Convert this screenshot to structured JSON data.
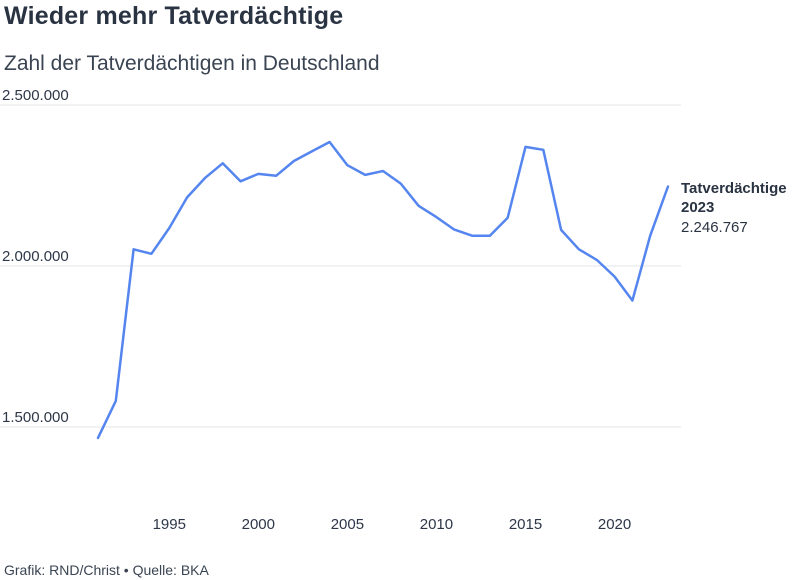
{
  "header": {
    "title": "Wieder mehr Tatverdächtige",
    "subtitle": "Zahl der Tatverdächtigen in Deutschland"
  },
  "footer": {
    "credit": "Grafik: RND/Christ • Quelle: BKA"
  },
  "colors": {
    "line": "#5585ef",
    "grid": "#e3e5e8",
    "text": "#2d3748"
  },
  "chart_data": {
    "type": "line",
    "title": "Wieder mehr Tatverdächtige",
    "subtitle": "Zahl der Tatverdächtigen in Deutschland",
    "xlabel": "",
    "ylabel": "",
    "xlim": [
      1991,
      2023
    ],
    "ylim": [
      1500000,
      2500000
    ],
    "grid": true,
    "y_ticks": [
      {
        "value": 1500000,
        "label": "1.500.000"
      },
      {
        "value": 2000000,
        "label": "2.000.000"
      },
      {
        "value": 2500000,
        "label": "2.500.000"
      }
    ],
    "x_ticks": [
      {
        "value": 1995,
        "label": "1995"
      },
      {
        "value": 2000,
        "label": "2000"
      },
      {
        "value": 2005,
        "label": "2005"
      },
      {
        "value": 2010,
        "label": "2010"
      },
      {
        "value": 2015,
        "label": "2015"
      },
      {
        "value": 2020,
        "label": "2020"
      }
    ],
    "series": [
      {
        "name": "Tatverdächtige",
        "x": [
          1991,
          1992,
          1993,
          1994,
          1995,
          1996,
          1997,
          1998,
          1999,
          2000,
          2001,
          2002,
          2003,
          2004,
          2005,
          2006,
          2007,
          2008,
          2009,
          2010,
          2011,
          2012,
          2013,
          2014,
          2015,
          2016,
          2017,
          2018,
          2019,
          2020,
          2021,
          2022,
          2023
        ],
        "values": [
          1466000,
          1581000,
          2052000,
          2038000,
          2118000,
          2213000,
          2273000,
          2319000,
          2263000,
          2286000,
          2280000,
          2326000,
          2356000,
          2385000,
          2313000,
          2283000,
          2295000,
          2256000,
          2187000,
          2152000,
          2113000,
          2094000,
          2094000,
          2150000,
          2370000,
          2361000,
          2112000,
          2052000,
          2019000,
          1967000,
          1893000,
          2094000,
          2246767
        ]
      }
    ],
    "annotation": {
      "series_name": "Tatverdächtige",
      "year": "2023",
      "value_label": "2.246.767"
    }
  }
}
